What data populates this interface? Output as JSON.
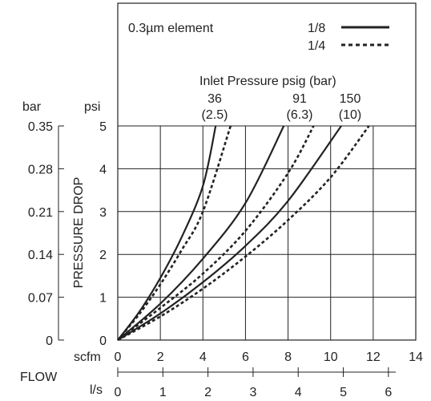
{
  "chart_data": {
    "type": "line",
    "legend_title": "0.3µm element",
    "legend_position": "top-right",
    "legend": [
      {
        "label": "1/8",
        "style": "solid"
      },
      {
        "label": "1/4",
        "style": "dotted"
      }
    ],
    "annotation_title": "Inlet Pressure psig (bar)",
    "pressure_labels": [
      {
        "psig": "36",
        "bar": "(2.5)"
      },
      {
        "psig": "91",
        "bar": "(6.3)"
      },
      {
        "psig": "150",
        "bar": "(10)"
      }
    ],
    "ylabel": "PRESSURE DROP",
    "y_unit_psi": "psi",
    "y_unit_bar": "bar",
    "xlabel": "FLOW",
    "x_unit_scfm": "scfm",
    "x_unit_ls": "l/s",
    "xlim": [
      0,
      14
    ],
    "ylim": [
      0,
      5
    ],
    "grid": true,
    "psi_ticks": [
      "0",
      "1",
      "2",
      "3",
      "4",
      "5"
    ],
    "bar_ticks": [
      "0",
      "0.07",
      "0.14",
      "0.21",
      "0.28",
      "0.35"
    ],
    "scfm_ticks": [
      "0",
      "2",
      "4",
      "6",
      "8",
      "10",
      "12",
      "14"
    ],
    "ls_ticks": [
      "0",
      "1",
      "2",
      "3",
      "4",
      "5",
      "6"
    ],
    "series": [
      {
        "style": "solid",
        "pressure": "36",
        "x": [
          0,
          1,
          2,
          3,
          4,
          4.6
        ],
        "y": [
          0,
          0.65,
          1.45,
          2.4,
          3.6,
          5.0
        ]
      },
      {
        "style": "dotted",
        "pressure": "36",
        "x": [
          0,
          1,
          2,
          3,
          4,
          5.3
        ],
        "y": [
          0,
          0.6,
          1.3,
          2.1,
          3.0,
          5.0
        ]
      },
      {
        "style": "solid",
        "pressure": "91",
        "x": [
          0,
          2,
          4,
          6,
          7.8
        ],
        "y": [
          0,
          0.85,
          1.9,
          3.2,
          5.0
        ]
      },
      {
        "style": "dotted",
        "pressure": "91",
        "x": [
          0,
          2,
          4,
          6,
          8,
          9.2
        ],
        "y": [
          0,
          0.75,
          1.55,
          2.55,
          3.9,
          5.0
        ]
      },
      {
        "style": "solid",
        "pressure": "150",
        "x": [
          0,
          2,
          4,
          6,
          8,
          10.5
        ],
        "y": [
          0,
          0.62,
          1.35,
          2.2,
          3.25,
          5.0
        ]
      },
      {
        "style": "dotted",
        "pressure": "150",
        "x": [
          0,
          2,
          4,
          6,
          8,
          10,
          11.8
        ],
        "y": [
          0,
          0.55,
          1.2,
          1.95,
          2.8,
          3.8,
          5.0
        ]
      }
    ]
  }
}
